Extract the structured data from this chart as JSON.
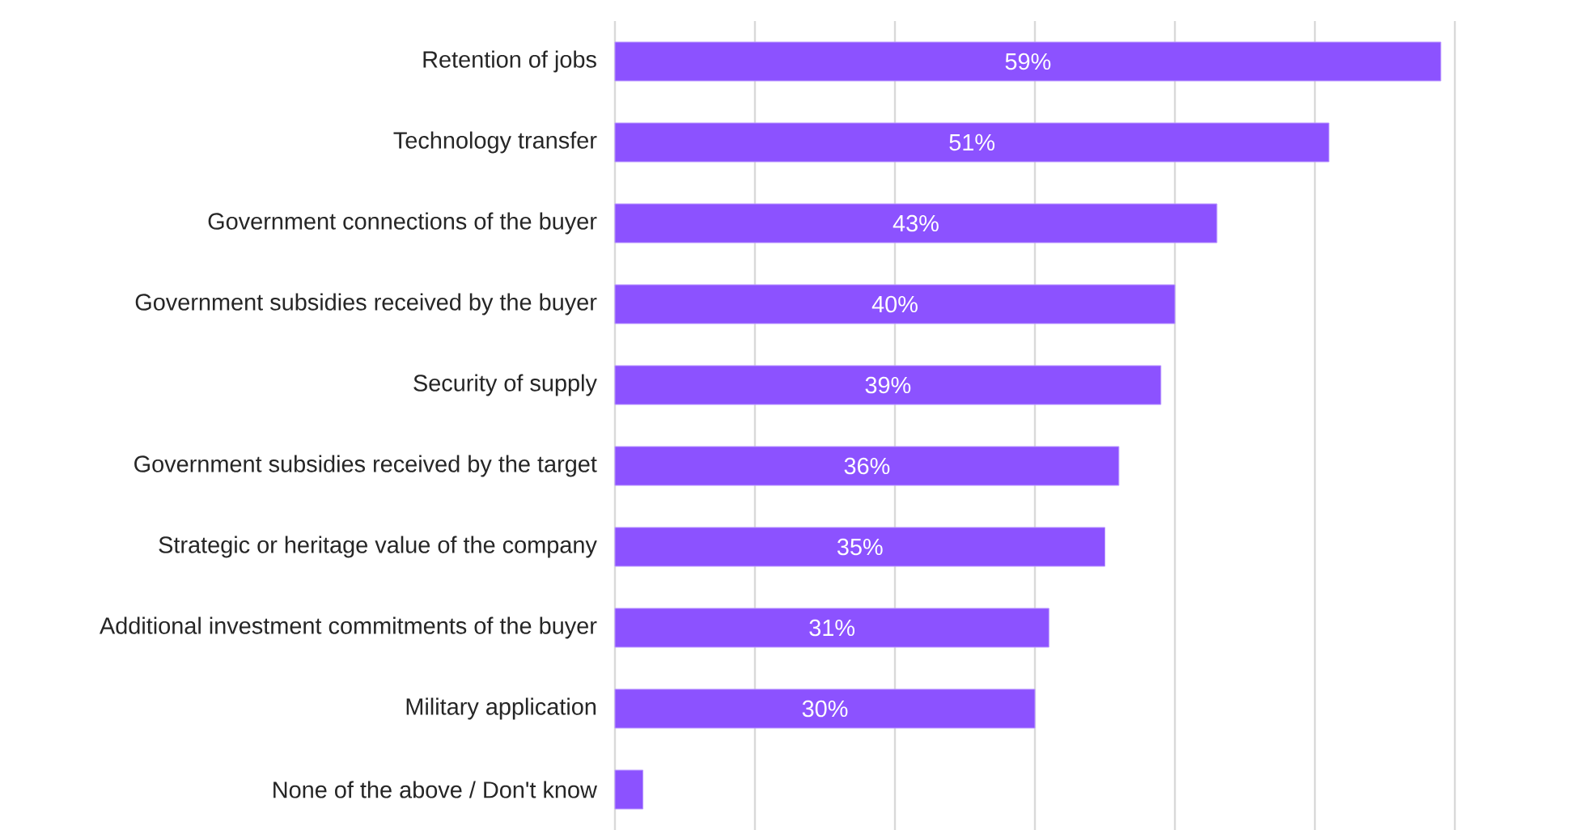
{
  "chart_data": {
    "type": "bar",
    "orientation": "horizontal",
    "categories": [
      "Retention of jobs",
      "Technology transfer",
      "Government connections of the buyer",
      "Government subsidies received by the buyer",
      "Security of supply",
      "Government subsidies received by the target",
      "Strategic or heritage value of the company",
      "Additional investment commitments of the buyer",
      "Military application",
      "None of the above / Don't know"
    ],
    "values": [
      59,
      51,
      43,
      40,
      39,
      36,
      35,
      31,
      30,
      2
    ],
    "value_labels": [
      "59%",
      "51%",
      "43%",
      "40%",
      "39%",
      "36%",
      "35%",
      "31%",
      "30%",
      null
    ],
    "color": "#8c52ff",
    "xlim": [
      0,
      60
    ],
    "xticks": [
      {
        "value": 0,
        "label": null
      },
      {
        "value": 10,
        "label": null
      },
      {
        "value": 20,
        "label": null
      },
      {
        "value": 30,
        "label": null
      },
      {
        "value": 40,
        "label": null
      },
      {
        "value": 50,
        "label": null
      },
      {
        "value": 60,
        "label": null
      }
    ],
    "tick_labels": "y",
    "grid": "x"
  }
}
